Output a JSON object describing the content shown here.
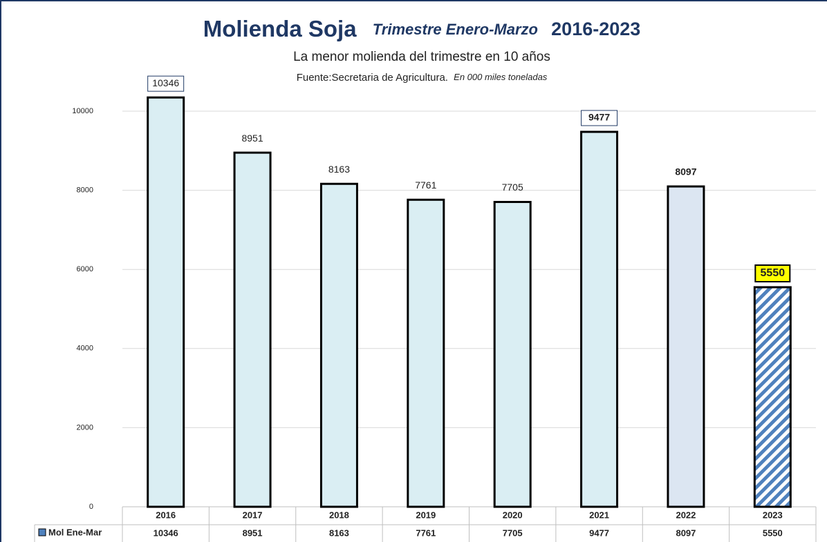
{
  "chart_data": {
    "type": "bar",
    "title": "Molienda Soja",
    "title_italic": "Trimestre Enero-Marzo",
    "title_years": "2016-2023",
    "subtitle": "La menor molienda del trimestre en 10 años",
    "source": "Fuente:Secretaria de Agricultura.",
    "units": "En 000 miles toneladas",
    "categories": [
      "2016",
      "2017",
      "2018",
      "2019",
      "2020",
      "2021",
      "2022",
      "2023"
    ],
    "series": [
      {
        "name": "Mol Ene-Mar",
        "color": "#daeef3",
        "colors": [
          "#daeef3",
          "#daeef3",
          "#daeef3",
          "#daeef3",
          "#daeef3",
          "#daeef3",
          "#dce6f2",
          "#4f81bd"
        ],
        "values": [
          10346,
          8951,
          8163,
          7761,
          7705,
          9477,
          8097,
          5550
        ]
      }
    ],
    "ylim": [
      0,
      10000
    ],
    "yticks": [
      0,
      2000,
      4000,
      6000,
      8000,
      10000
    ],
    "grid": true
  }
}
